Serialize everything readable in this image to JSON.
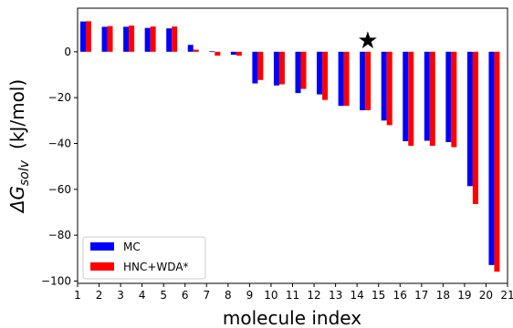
{
  "chart_data": {
    "type": "bar",
    "xlabel": "molecule index",
    "ylabel_main": "ΔG",
    "ylabel_sub": "solv",
    "ylabel_unit": "(kJ/mol)",
    "xlim": [
      1,
      21
    ],
    "ylim": [
      -101,
      19
    ],
    "x_ticks": [
      1,
      2,
      3,
      4,
      5,
      6,
      7,
      8,
      9,
      10,
      11,
      12,
      13,
      14,
      15,
      16,
      17,
      18,
      19,
      20,
      21
    ],
    "y_ticks": [
      0,
      -20,
      -40,
      -60,
      -80,
      -100
    ],
    "grid": false,
    "legend_position": "lower-left",
    "x": [
      1,
      2,
      3,
      4,
      5,
      6,
      7,
      8,
      9,
      10,
      11,
      12,
      13,
      14,
      15,
      16,
      17,
      18,
      19,
      20
    ],
    "series": [
      {
        "name": "MC",
        "color": "#0000ff",
        "values": [
          13.2,
          10.9,
          10.9,
          10.4,
          10.2,
          3.0,
          0.2,
          -1.3,
          -13.8,
          -14.7,
          -18.0,
          -18.6,
          -23.6,
          -25.5,
          -30.0,
          -39.0,
          -38.8,
          -39.4,
          -58.6,
          -93.0
        ]
      },
      {
        "name": "HNC+WDA*",
        "color": "#ff0000",
        "values": [
          13.3,
          11.2,
          11.4,
          11.0,
          11.0,
          0.9,
          -1.7,
          -1.7,
          -12.3,
          -14.2,
          -16.2,
          -21.0,
          -23.6,
          -25.5,
          -32.0,
          -41.0,
          -41.0,
          -41.6,
          -66.4,
          -95.9
        ]
      }
    ],
    "annotation": {
      "symbol": "★",
      "x": 14.5,
      "y": 5
    }
  }
}
